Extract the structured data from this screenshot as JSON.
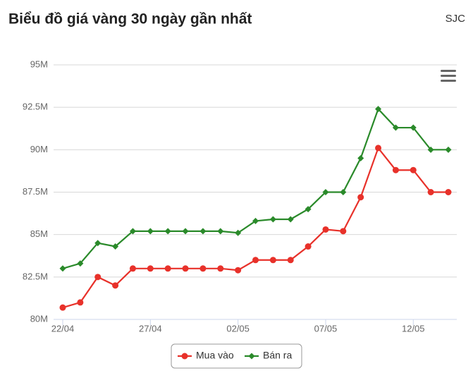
{
  "chart_data": {
    "type": "line",
    "title": "Biểu đồ giá vàng 30 ngày gần nhất",
    "subtitle": "SJC",
    "categories": [
      "22/04",
      null,
      null,
      null,
      null,
      "27/04",
      null,
      null,
      null,
      null,
      "02/05",
      null,
      null,
      null,
      null,
      "07/05",
      null,
      null,
      null,
      null,
      "12/05",
      null,
      null
    ],
    "series": [
      {
        "name": "Mua vào",
        "color": "#e8312a",
        "marker": "circle",
        "values": [
          80.7,
          81.0,
          82.5,
          82.0,
          83.0,
          83.0,
          83.0,
          83.0,
          83.0,
          83.0,
          82.9,
          83.5,
          83.5,
          83.5,
          84.3,
          85.3,
          85.2,
          87.2,
          90.1,
          88.8,
          88.8,
          87.5,
          87.5
        ]
      },
      {
        "name": "Bán ra",
        "color": "#2a8a2a",
        "marker": "diamond",
        "values": [
          83.0,
          83.3,
          84.5,
          84.3,
          85.2,
          85.2,
          85.2,
          85.2,
          85.2,
          85.2,
          85.1,
          85.8,
          85.9,
          85.9,
          86.5,
          87.5,
          87.5,
          89.5,
          92.4,
          91.3,
          91.3,
          90.0,
          90.0
        ]
      }
    ],
    "ylim": [
      80,
      95
    ],
    "yticks": [
      {
        "value": 80,
        "label": "80M"
      },
      {
        "value": 82.5,
        "label": "82.5M"
      },
      {
        "value": 85,
        "label": "85M"
      },
      {
        "value": 87.5,
        "label": "87.5M"
      },
      {
        "value": 90,
        "label": "90M"
      },
      {
        "value": 92.5,
        "label": "92.5M"
      },
      {
        "value": 95,
        "label": "95M"
      }
    ],
    "grid": true,
    "legend": "bottom"
  }
}
